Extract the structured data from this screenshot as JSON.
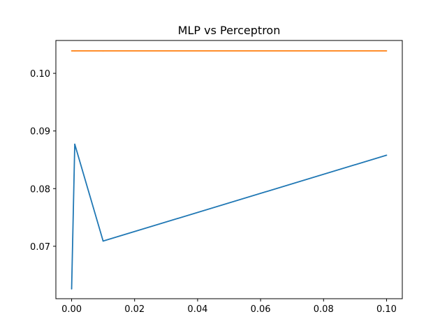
{
  "chart_data": {
    "type": "line",
    "title": "MLP vs Perceptron",
    "xlabel": "",
    "ylabel": "",
    "xlim": [
      -0.005,
      0.105
    ],
    "ylim": [
      0.0609,
      0.1057
    ],
    "xticks": [
      0.0,
      0.02,
      0.04,
      0.06,
      0.08,
      0.1
    ],
    "xtick_labels": [
      "0.00",
      "0.02",
      "0.04",
      "0.06",
      "0.08",
      "0.10"
    ],
    "yticks": [
      0.07,
      0.08,
      0.09,
      0.1
    ],
    "ytick_labels": [
      "0.07",
      "0.08",
      "0.09",
      "0.10"
    ],
    "grid": false,
    "series": [
      {
        "color": "#1f77b4",
        "x": [
          0.0,
          0.001,
          0.01,
          0.1
        ],
        "y": [
          0.0626,
          0.0877,
          0.0709,
          0.0858
        ]
      },
      {
        "color": "#ff7f0e",
        "x": [
          0.0,
          0.001,
          0.01,
          0.1
        ],
        "y": [
          0.1039,
          0.1039,
          0.1039,
          0.1039
        ]
      }
    ]
  }
}
